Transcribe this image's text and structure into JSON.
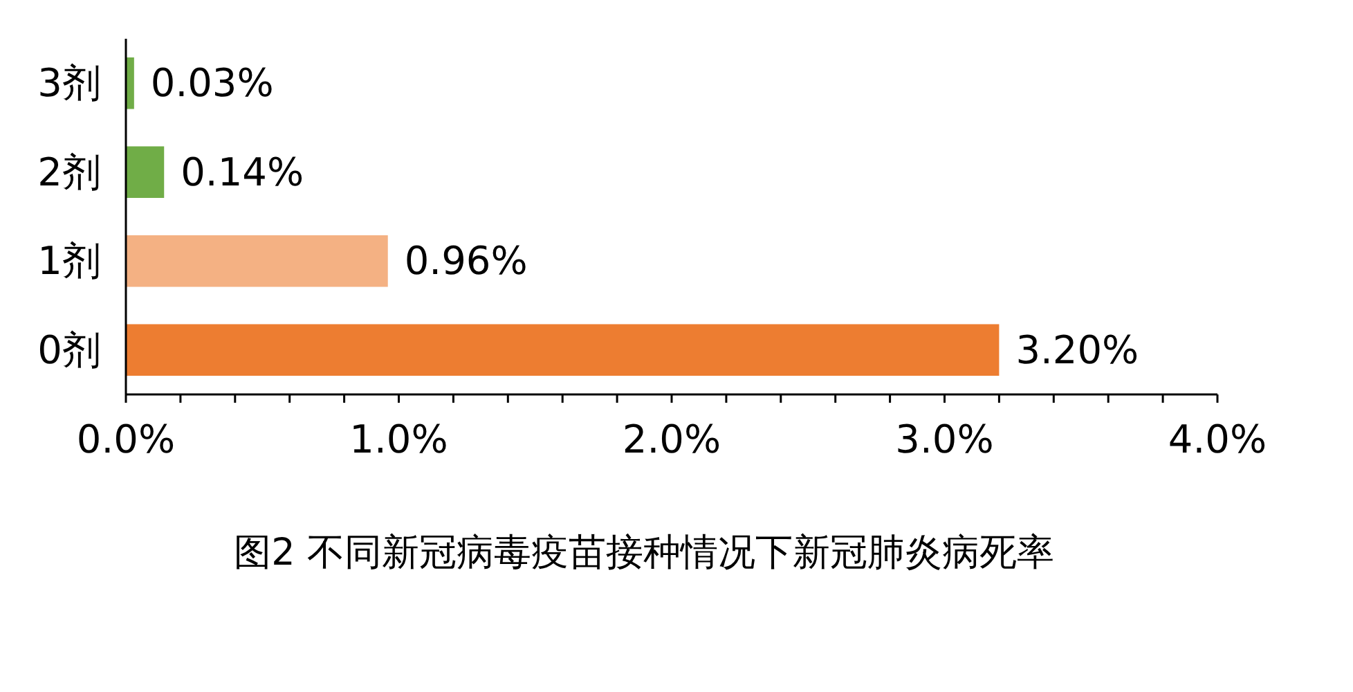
{
  "chart_data": {
    "type": "bar",
    "orientation": "horizontal",
    "title": "图2 不同新冠病毒疫苗接种情况下新冠肺炎病死率",
    "categories": [
      "3剂",
      "2剂",
      "1剂",
      "0剂"
    ],
    "values": [
      0.03,
      0.14,
      0.96,
      3.2
    ],
    "colors": [
      "#70ad47",
      "#70ad47",
      "#f4b183",
      "#ed7d31"
    ],
    "value_labels": [
      "0.03%",
      "0.14%",
      "0.96%",
      "3.20%"
    ],
    "xlim": [
      0,
      4
    ],
    "xticks": [
      {
        "value": 0,
        "label": "0.0%"
      },
      {
        "value": 0.2,
        "label": null
      },
      {
        "value": 0.4,
        "label": null
      },
      {
        "value": 0.6,
        "label": null
      },
      {
        "value": 0.8,
        "label": null
      },
      {
        "value": 1,
        "label": "1.0%"
      },
      {
        "value": 1.2,
        "label": null
      },
      {
        "value": 1.4,
        "label": null
      },
      {
        "value": 1.6,
        "label": null
      },
      {
        "value": 1.8,
        "label": null
      },
      {
        "value": 2,
        "label": "2.0%"
      },
      {
        "value": 2.2,
        "label": null
      },
      {
        "value": 2.4,
        "label": null
      },
      {
        "value": 2.6,
        "label": null
      },
      {
        "value": 2.8,
        "label": null
      },
      {
        "value": 3,
        "label": "3.0%"
      },
      {
        "value": 3.2,
        "label": null
      },
      {
        "value": 3.4,
        "label": null
      },
      {
        "value": 3.6,
        "label": null
      },
      {
        "value": 3.8,
        "label": null
      },
      {
        "value": 4,
        "label": "4.0%"
      }
    ],
    "grid": false
  }
}
